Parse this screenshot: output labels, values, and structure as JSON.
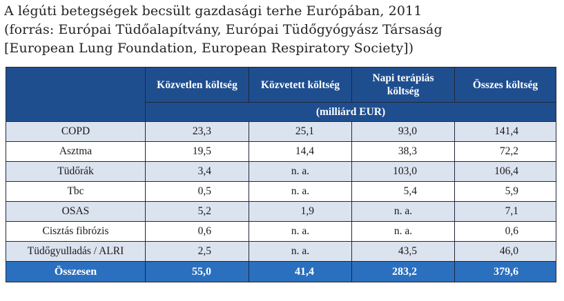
{
  "caption": {
    "line1": "A légúti betegségek becsült gazdasági terhe Európában, 2011",
    "line2": "(forrás: Európai Tüdőalapítvány, Európai Tüdőgyógyász Társaság",
    "line3": "[European Lung Foundation, European Respiratory Society])"
  },
  "table": {
    "headers": [
      "",
      "Közvetlen költség",
      "Közvetett költség",
      "Napi terápiás költség",
      "Összes költség"
    ],
    "unit": "(milliárd EUR)",
    "rows": [
      {
        "label": "COPD",
        "direct": "23,3",
        "indirect": "25,1",
        "daily": "93,0",
        "total": "141,4"
      },
      {
        "label": "Asztma",
        "direct": "19,5",
        "indirect": "14,4",
        "daily": "38,3",
        "total": "72,2"
      },
      {
        "label": "Tüdőrák",
        "direct": "3,4",
        "indirect": "n. a.",
        "daily": "103,0",
        "total": "106,4"
      },
      {
        "label": "Tbc",
        "direct": "0,5",
        "indirect": "n. a.",
        "daily": "5,4",
        "total": "5,9"
      },
      {
        "label": "OSAS",
        "direct": "5,2",
        "indirect": "1,9",
        "daily": "n. a.",
        "total": "7,1"
      },
      {
        "label": "Cisztás fibrózis",
        "direct": "0,6",
        "indirect": "n. a.",
        "daily": "n. a.",
        "total": "0,6"
      },
      {
        "label": "Tüdőgyulladás / ALRI",
        "direct": "2,5",
        "indirect": "n. a.",
        "daily": "43,5",
        "total": "46,0"
      }
    ],
    "total_row": {
      "label": "Összesen",
      "direct": "55,0",
      "indirect": "41,4",
      "daily": "283,2",
      "total": "379,6"
    }
  },
  "colors": {
    "header_bg": "#1f4e8f",
    "total_bg": "#2a70bf",
    "row_alt_bg": "#dbe3ef",
    "border": "#20263a"
  }
}
